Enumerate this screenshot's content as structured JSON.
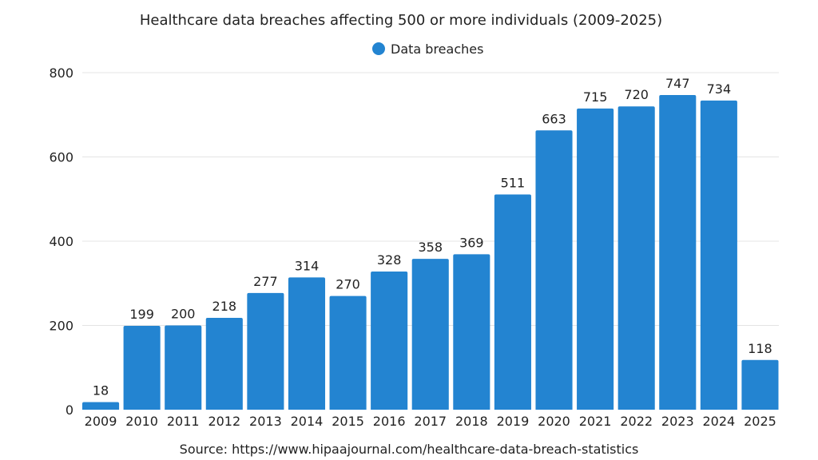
{
  "chart_data": {
    "type": "bar",
    "title": "Healthcare data breaches affecting 500 or more individuals (2009-2025)",
    "legend": {
      "position": "top",
      "entries": [
        "Data breaches"
      ]
    },
    "categories": [
      "2009",
      "2010",
      "2011",
      "2012",
      "2013",
      "2014",
      "2015",
      "2016",
      "2017",
      "2018",
      "2019",
      "2020",
      "2021",
      "2022",
      "2023",
      "2024",
      "2025"
    ],
    "series": [
      {
        "name": "Data breaches",
        "values": [
          18,
          199,
          200,
          218,
          277,
          314,
          270,
          328,
          358,
          369,
          511,
          663,
          715,
          720,
          747,
          734,
          118
        ],
        "color": "#2384d1"
      }
    ],
    "ylim": [
      0,
      800
    ],
    "yticks": [
      0,
      200,
      400,
      600,
      800
    ],
    "grid": true,
    "data_labels": true,
    "source": "Source: https://www.hipaajournal.com/healthcare-data-breach-statistics"
  }
}
